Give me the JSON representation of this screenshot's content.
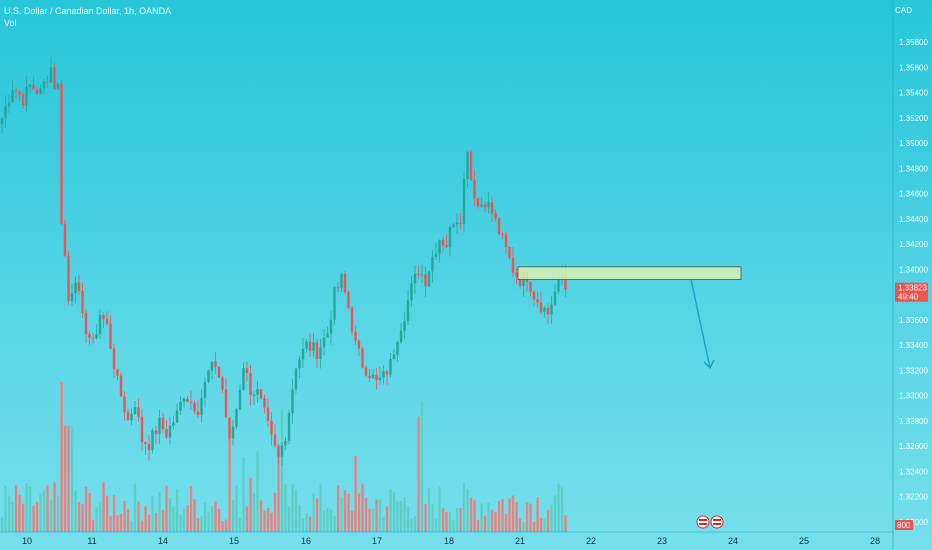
{
  "header": {
    "title": "U.S. Dollar / Canadian Dollar, 1h, OANDA",
    "volume_label": "Vol"
  },
  "currency": "CAD",
  "colors": {
    "up": "#26a69a",
    "down": "#ef5350",
    "up_vol": "#5fcfc4",
    "down_vol": "#f07e7c",
    "accent": "#1ea2c4",
    "zone_fill": "#d8f0b0",
    "zone_stroke": "#38585a"
  },
  "price_badge": {
    "price": "1.33823",
    "countdown": "49:40"
  },
  "volume_badge": "800",
  "chart_data": {
    "type": "candlestick",
    "symbol": "USDCAD",
    "interval": "1h",
    "ylim": [
      1.32,
      1.36
    ],
    "y_ticks": [
      "1.35800",
      "1.35600",
      "1.35400",
      "1.35200",
      "1.35000",
      "1.34800",
      "1.34600",
      "1.34400",
      "1.34200",
      "1.34000",
      "1.33600",
      "1.33400",
      "1.33200",
      "1.33000",
      "1.32800",
      "1.32600",
      "1.32400",
      "1.32200",
      "1.32000"
    ],
    "x_ticks": [
      "10",
      "11",
      "14",
      "15",
      "16",
      "17",
      "18",
      "21",
      "22",
      "23",
      "24",
      "25",
      "28"
    ],
    "current_price": 1.33823,
    "resistance_zone": {
      "low": 1.3392,
      "high": 1.3402,
      "from_day": "22",
      "to_day": "24"
    },
    "projection_arrow": {
      "from_price": 1.3392,
      "to_price": 1.3322,
      "direction": "down"
    },
    "path": [
      [
        0,
        1.352
      ],
      [
        3,
        1.3545
      ],
      [
        6,
        1.3535
      ],
      [
        8,
        1.3545
      ],
      [
        11,
        1.354
      ],
      [
        14,
        1.356
      ],
      [
        15,
        1.3546
      ],
      [
        16,
        1.3545
      ],
      [
        17,
        1.344
      ],
      [
        18,
        1.341
      ],
      [
        19,
        1.3375
      ],
      [
        21,
        1.3395
      ],
      [
        23,
        1.336
      ],
      [
        26,
        1.334
      ],
      [
        28,
        1.3365
      ],
      [
        30,
        1.3355
      ],
      [
        33,
        1.331
      ],
      [
        36,
        1.328
      ],
      [
        38,
        1.3295
      ],
      [
        40,
        1.3265
      ],
      [
        42,
        1.3262
      ],
      [
        45,
        1.3278
      ],
      [
        47,
        1.327
      ],
      [
        50,
        1.3285
      ],
      [
        52,
        1.3302
      ],
      [
        54,
        1.3295
      ],
      [
        56,
        1.329
      ],
      [
        59,
        1.3318
      ],
      [
        61,
        1.3325
      ],
      [
        63,
        1.3305
      ],
      [
        65,
        1.3262
      ],
      [
        67,
        1.329
      ],
      [
        69,
        1.3325
      ],
      [
        71,
        1.3305
      ],
      [
        73,
        1.3302
      ],
      [
        75,
        1.3285
      ],
      [
        77,
        1.3265
      ],
      [
        79,
        1.325
      ],
      [
        81,
        1.327
      ],
      [
        84,
        1.3325
      ],
      [
        87,
        1.334
      ],
      [
        90,
        1.3335
      ],
      [
        93,
        1.335
      ],
      [
        95,
        1.338
      ],
      [
        97,
        1.3392
      ],
      [
        99,
        1.337
      ],
      [
        101,
        1.334
      ],
      [
        103,
        1.3325
      ],
      [
        105,
        1.3318
      ],
      [
        107,
        1.331
      ],
      [
        109,
        1.3315
      ],
      [
        111,
        1.3325
      ],
      [
        113,
        1.3348
      ],
      [
        115,
        1.3365
      ],
      [
        117,
        1.3385
      ],
      [
        119,
        1.34
      ],
      [
        121,
        1.3392
      ],
      [
        123,
        1.341
      ],
      [
        125,
        1.3425
      ],
      [
        127,
        1.342
      ],
      [
        129,
        1.344
      ],
      [
        131,
        1.3442
      ],
      [
        133,
        1.3498
      ],
      [
        134,
        1.3472
      ],
      [
        136,
        1.345
      ],
      [
        138,
        1.3455
      ],
      [
        140,
        1.3445
      ],
      [
        142,
        1.343
      ],
      [
        144,
        1.3415
      ],
      [
        146,
        1.34
      ],
      [
        148,
        1.3392
      ],
      [
        150,
        1.3395
      ],
      [
        152,
        1.338
      ],
      [
        154,
        1.3372
      ],
      [
        156,
        1.3365
      ],
      [
        158,
        1.3382
      ],
      [
        160,
        1.3395
      ],
      [
        161,
        1.3385
      ]
    ]
  }
}
